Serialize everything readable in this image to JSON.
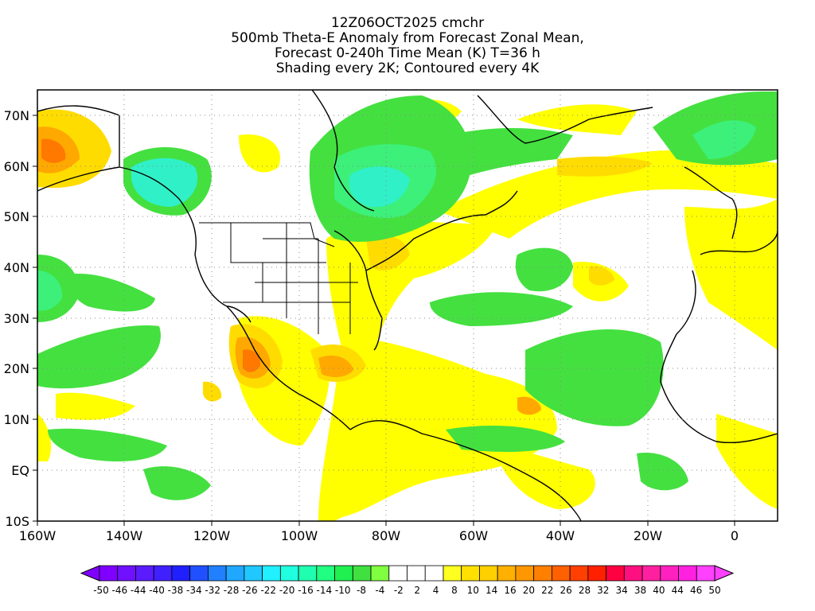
{
  "title": {
    "line1": "12Z06OCT2025 cmchr",
    "line2": "500mb Theta-E Anomaly from Forecast Zonal Mean,",
    "line3": "Forecast 0-240h Time Mean (K) T=36 h",
    "line4": "Shading every 2K; Contoured every 4K"
  },
  "map": {
    "lat_labels": [
      "70N",
      "60N",
      "50N",
      "40N",
      "30N",
      "20N",
      "10N",
      "EQ",
      "10S"
    ],
    "lon_labels": [
      "160W",
      "140W",
      "120W",
      "100W",
      "80W",
      "60W",
      "40W",
      "20W",
      "0"
    ]
  },
  "colorbar": {
    "labels": [
      "-50",
      "-46",
      "-44",
      "-40",
      "-38",
      "-34",
      "-32",
      "-28",
      "-26",
      "-22",
      "-20",
      "-16",
      "-14",
      "-10",
      "-8",
      "-4",
      "-2",
      "2",
      "4",
      "8",
      "10",
      "14",
      "16",
      "20",
      "22",
      "26",
      "28",
      "32",
      "34",
      "38",
      "40",
      "44",
      "46",
      "50"
    ],
    "colors": [
      "#8000ff",
      "#7010ff",
      "#5a1cff",
      "#4020ff",
      "#2020ff",
      "#2050ff",
      "#2080ff",
      "#20a8ff",
      "#20c8ff",
      "#20f0ff",
      "#20ffe0",
      "#20ffb0",
      "#20ff80",
      "#20f050",
      "#40e040",
      "#80ff40",
      "#ffffff",
      "#ffffff",
      "#ffffff",
      "#ffff20",
      "#ffe000",
      "#ffd000",
      "#ffb000",
      "#ff9800",
      "#ff8000",
      "#ff6000",
      "#ff4000",
      "#ff2000",
      "#ff0040",
      "#ff1080",
      "#ff20a0",
      "#ff20c0",
      "#ff20e0",
      "#ff40ff"
    ]
  },
  "colors": {
    "green": "#44e040",
    "light_green": "#3cf07a",
    "cyan_green": "#30f0c8",
    "yellow": "#ffff00",
    "gold": "#ffdc00",
    "orange": "#ffa800",
    "dark_orange": "#ff7800",
    "red_orange": "#ff5010"
  }
}
